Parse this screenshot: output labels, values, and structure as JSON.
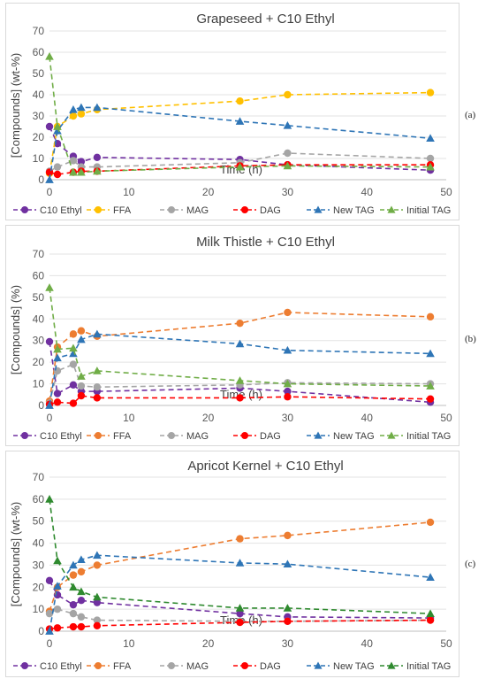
{
  "colors": {
    "C10 Ethyl": "#7030a0",
    "FFA": "#ed7d31",
    "FFA_a": "#ffc000",
    "MAG": "#a5a5a5",
    "DAG": "#ff0000",
    "New TAG": "#2e75b6",
    "Initial TAG": "#70ad47",
    "Initial TAG_c": "#2f8a2f"
  },
  "chart_data": [
    {
      "type": "line",
      "panel_label": "(a)",
      "title": "Grapeseed + C10 Ethyl",
      "xlabel": "Time (h)",
      "ylabel": "[Compounds] (wt-%)",
      "xlim": [
        0,
        50
      ],
      "ylim": [
        0,
        70
      ],
      "x_ticks": [
        0,
        10,
        20,
        30,
        40,
        50
      ],
      "y_ticks": [
        0,
        10,
        20,
        30,
        40,
        50,
        60,
        70
      ],
      "grid": true,
      "legend": "bottom",
      "series": [
        {
          "name": "C10 Ethyl",
          "color_key": "C10 Ethyl",
          "marker": "circle",
          "x": [
            0,
            1,
            3,
            4,
            6,
            24,
            30,
            48
          ],
          "y": [
            25,
            17,
            11,
            8.5,
            10.5,
            9.5,
            7,
            4.5
          ]
        },
        {
          "name": "FFA",
          "color_key": "FFA_a",
          "marker": "circle",
          "x": [
            0,
            1,
            3,
            4,
            6,
            24,
            30,
            48
          ],
          "y": [
            3,
            25,
            30,
            31,
            33,
            37,
            40,
            41
          ]
        },
        {
          "name": "MAG",
          "color_key": "MAG",
          "marker": "circle",
          "x": [
            0,
            1,
            3,
            4,
            6,
            24,
            30,
            48
          ],
          "y": [
            4,
            6,
            9,
            6,
            6,
            8,
            12.5,
            10
          ]
        },
        {
          "name": "DAG",
          "color_key": "DAG",
          "marker": "circle",
          "x": [
            0,
            1,
            3,
            4,
            6,
            24,
            30,
            48
          ],
          "y": [
            3.5,
            2.5,
            3.5,
            4,
            4,
            6.5,
            7,
            7
          ]
        },
        {
          "name": "New TAG",
          "color_key": "New TAG",
          "marker": "triangle",
          "x": [
            0,
            1,
            3,
            4,
            6,
            24,
            30,
            48
          ],
          "y": [
            0,
            23,
            33,
            34,
            34,
            27.5,
            25.5,
            19.5
          ]
        },
        {
          "name": "Initial TAG",
          "color_key": "Initial TAG",
          "marker": "triangle",
          "x": [
            0,
            1,
            3,
            4,
            6,
            24,
            30,
            48
          ],
          "y": [
            58,
            25,
            3.5,
            3.5,
            4,
            6,
            6.5,
            6
          ]
        }
      ]
    },
    {
      "type": "line",
      "panel_label": "(b)",
      "title": "Milk Thistle + C10 Ethyl",
      "xlabel": "Time (h)",
      "ylabel": "[Compounds] (%)",
      "xlim": [
        0,
        50
      ],
      "ylim": [
        0,
        70
      ],
      "x_ticks": [
        0,
        10,
        20,
        30,
        40,
        50
      ],
      "y_ticks": [
        0,
        10,
        20,
        30,
        40,
        50,
        60,
        70
      ],
      "grid": true,
      "legend": "bottom",
      "series": [
        {
          "name": "C10 Ethyl",
          "color_key": "C10 Ethyl",
          "marker": "circle",
          "x": [
            0,
            1,
            3,
            4,
            6,
            24,
            30,
            48
          ],
          "y": [
            29.5,
            5.5,
            9.5,
            6.5,
            6.5,
            8,
            6.5,
            1.5
          ]
        },
        {
          "name": "FFA",
          "color_key": "FFA",
          "marker": "circle",
          "x": [
            0,
            1,
            3,
            4,
            6,
            24,
            30,
            48
          ],
          "y": [
            2,
            27,
            33,
            34.5,
            32,
            38,
            43,
            41
          ]
        },
        {
          "name": "MAG",
          "color_key": "MAG",
          "marker": "circle",
          "x": [
            0,
            1,
            3,
            4,
            6,
            24,
            30,
            48
          ],
          "y": [
            1,
            16,
            19,
            9,
            8.5,
            9.5,
            10.5,
            10
          ]
        },
        {
          "name": "DAG",
          "color_key": "DAG",
          "marker": "circle",
          "x": [
            0,
            1,
            3,
            4,
            6,
            24,
            30,
            48
          ],
          "y": [
            0.5,
            1.5,
            1,
            4.5,
            3.5,
            3.5,
            4,
            3
          ]
        },
        {
          "name": "New TAG",
          "color_key": "New TAG",
          "marker": "triangle",
          "x": [
            0,
            1,
            3,
            4,
            6,
            24,
            30,
            48
          ],
          "y": [
            0,
            22,
            24,
            30.5,
            33,
            28.5,
            25.5,
            24
          ]
        },
        {
          "name": "Initial TAG",
          "color_key": "Initial TAG",
          "marker": "triangle",
          "x": [
            0,
            1,
            3,
            4,
            6,
            24,
            30,
            48
          ],
          "y": [
            54.5,
            26,
            26.5,
            13.5,
            16,
            11.5,
            10,
            9
          ]
        }
      ]
    },
    {
      "type": "line",
      "panel_label": "(c)",
      "title": "Apricot Kernel + C10 Ethyl",
      "xlabel": "Time (h)",
      "ylabel": "[Compounds] (wt-%)",
      "xlim": [
        0,
        50
      ],
      "ylim": [
        0,
        70
      ],
      "x_ticks": [
        0,
        10,
        20,
        30,
        40,
        50
      ],
      "y_ticks": [
        0,
        10,
        20,
        30,
        40,
        50,
        60,
        70
      ],
      "grid": true,
      "legend": "bottom",
      "series": [
        {
          "name": "C10 Ethyl",
          "color_key": "C10 Ethyl",
          "marker": "circle",
          "x": [
            0,
            1,
            3,
            4,
            6,
            24,
            30,
            48
          ],
          "y": [
            23,
            16.5,
            12,
            14,
            13,
            8,
            6.5,
            6
          ]
        },
        {
          "name": "FFA",
          "color_key": "FFA",
          "marker": "circle",
          "x": [
            0,
            1,
            3,
            4,
            6,
            24,
            30,
            48
          ],
          "y": [
            9,
            20,
            25.5,
            27,
            30,
            42,
            43.5,
            49.5
          ]
        },
        {
          "name": "MAG",
          "color_key": "MAG",
          "marker": "circle",
          "x": [
            0,
            1,
            3,
            4,
            6,
            24,
            30,
            48
          ],
          "y": [
            8,
            10,
            8,
            6.5,
            5,
            4.5,
            4.5,
            5
          ]
        },
        {
          "name": "DAG",
          "color_key": "DAG",
          "marker": "circle",
          "x": [
            0,
            1,
            3,
            4,
            6,
            24,
            30,
            48
          ],
          "y": [
            1,
            1.5,
            2,
            2,
            2.5,
            4,
            4.5,
            5
          ]
        },
        {
          "name": "New TAG",
          "color_key": "New TAG",
          "marker": "triangle",
          "x": [
            0,
            1,
            3,
            4,
            6,
            24,
            30,
            48
          ],
          "y": [
            0,
            20.5,
            30,
            32.5,
            34.5,
            31,
            30.5,
            24.5
          ]
        },
        {
          "name": "Initial TAG",
          "color_key": "Initial TAG_c",
          "marker": "triangle",
          "x": [
            0,
            1,
            3,
            4,
            6,
            24,
            30,
            48
          ],
          "y": [
            60,
            32,
            20,
            18,
            15.5,
            10.5,
            10.5,
            8
          ]
        }
      ]
    }
  ]
}
